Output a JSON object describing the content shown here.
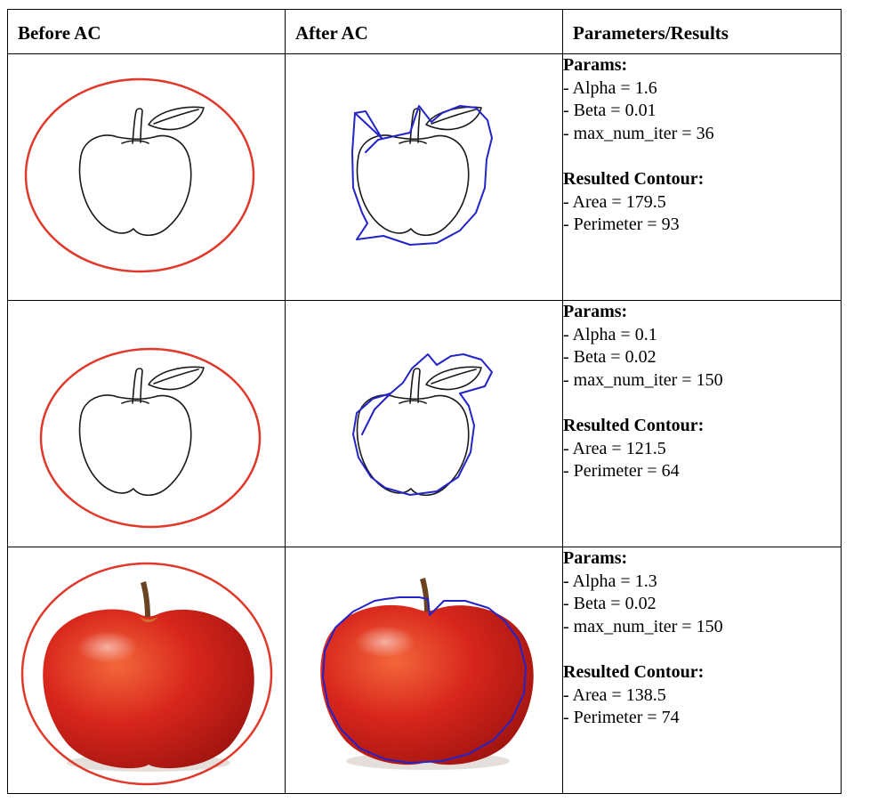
{
  "headers": [
    "Before AC",
    "After AC",
    "Parameters/Results"
  ],
  "rows": [
    {
      "image_kind": "apple-sketch",
      "params_title": "Params:",
      "alpha": "- Alpha = 1.6",
      "beta": "- Beta = 0.01",
      "iters": "- max_num_iter = 36",
      "result_title": "Resulted Contour:",
      "area": "- Area = 179.5",
      "perimeter": "- Perimeter = 93"
    },
    {
      "image_kind": "apple-sketch",
      "params_title": "Params:",
      "alpha": "- Alpha = 0.1",
      "beta": "- Beta = 0.02",
      "iters": "- max_num_iter = 150",
      "result_title": "Resulted Contour:",
      "area": "- Area = 121.5",
      "perimeter": "- Perimeter = 64"
    },
    {
      "image_kind": "apple-photo",
      "params_title": "Params:",
      "alpha": "- Alpha = 1.3",
      "beta": "- Beta = 0.02",
      "iters": "- max_num_iter = 150",
      "result_title": "Resulted Contour:",
      "area": "- Area = 138.5",
      "perimeter": "- Perimeter = 74"
    }
  ],
  "colors": {
    "initial_contour": "#e0382b",
    "result_contour": "#2323c8",
    "sketch_line": "#1a1a1a",
    "apple_red": "#d8261c"
  }
}
